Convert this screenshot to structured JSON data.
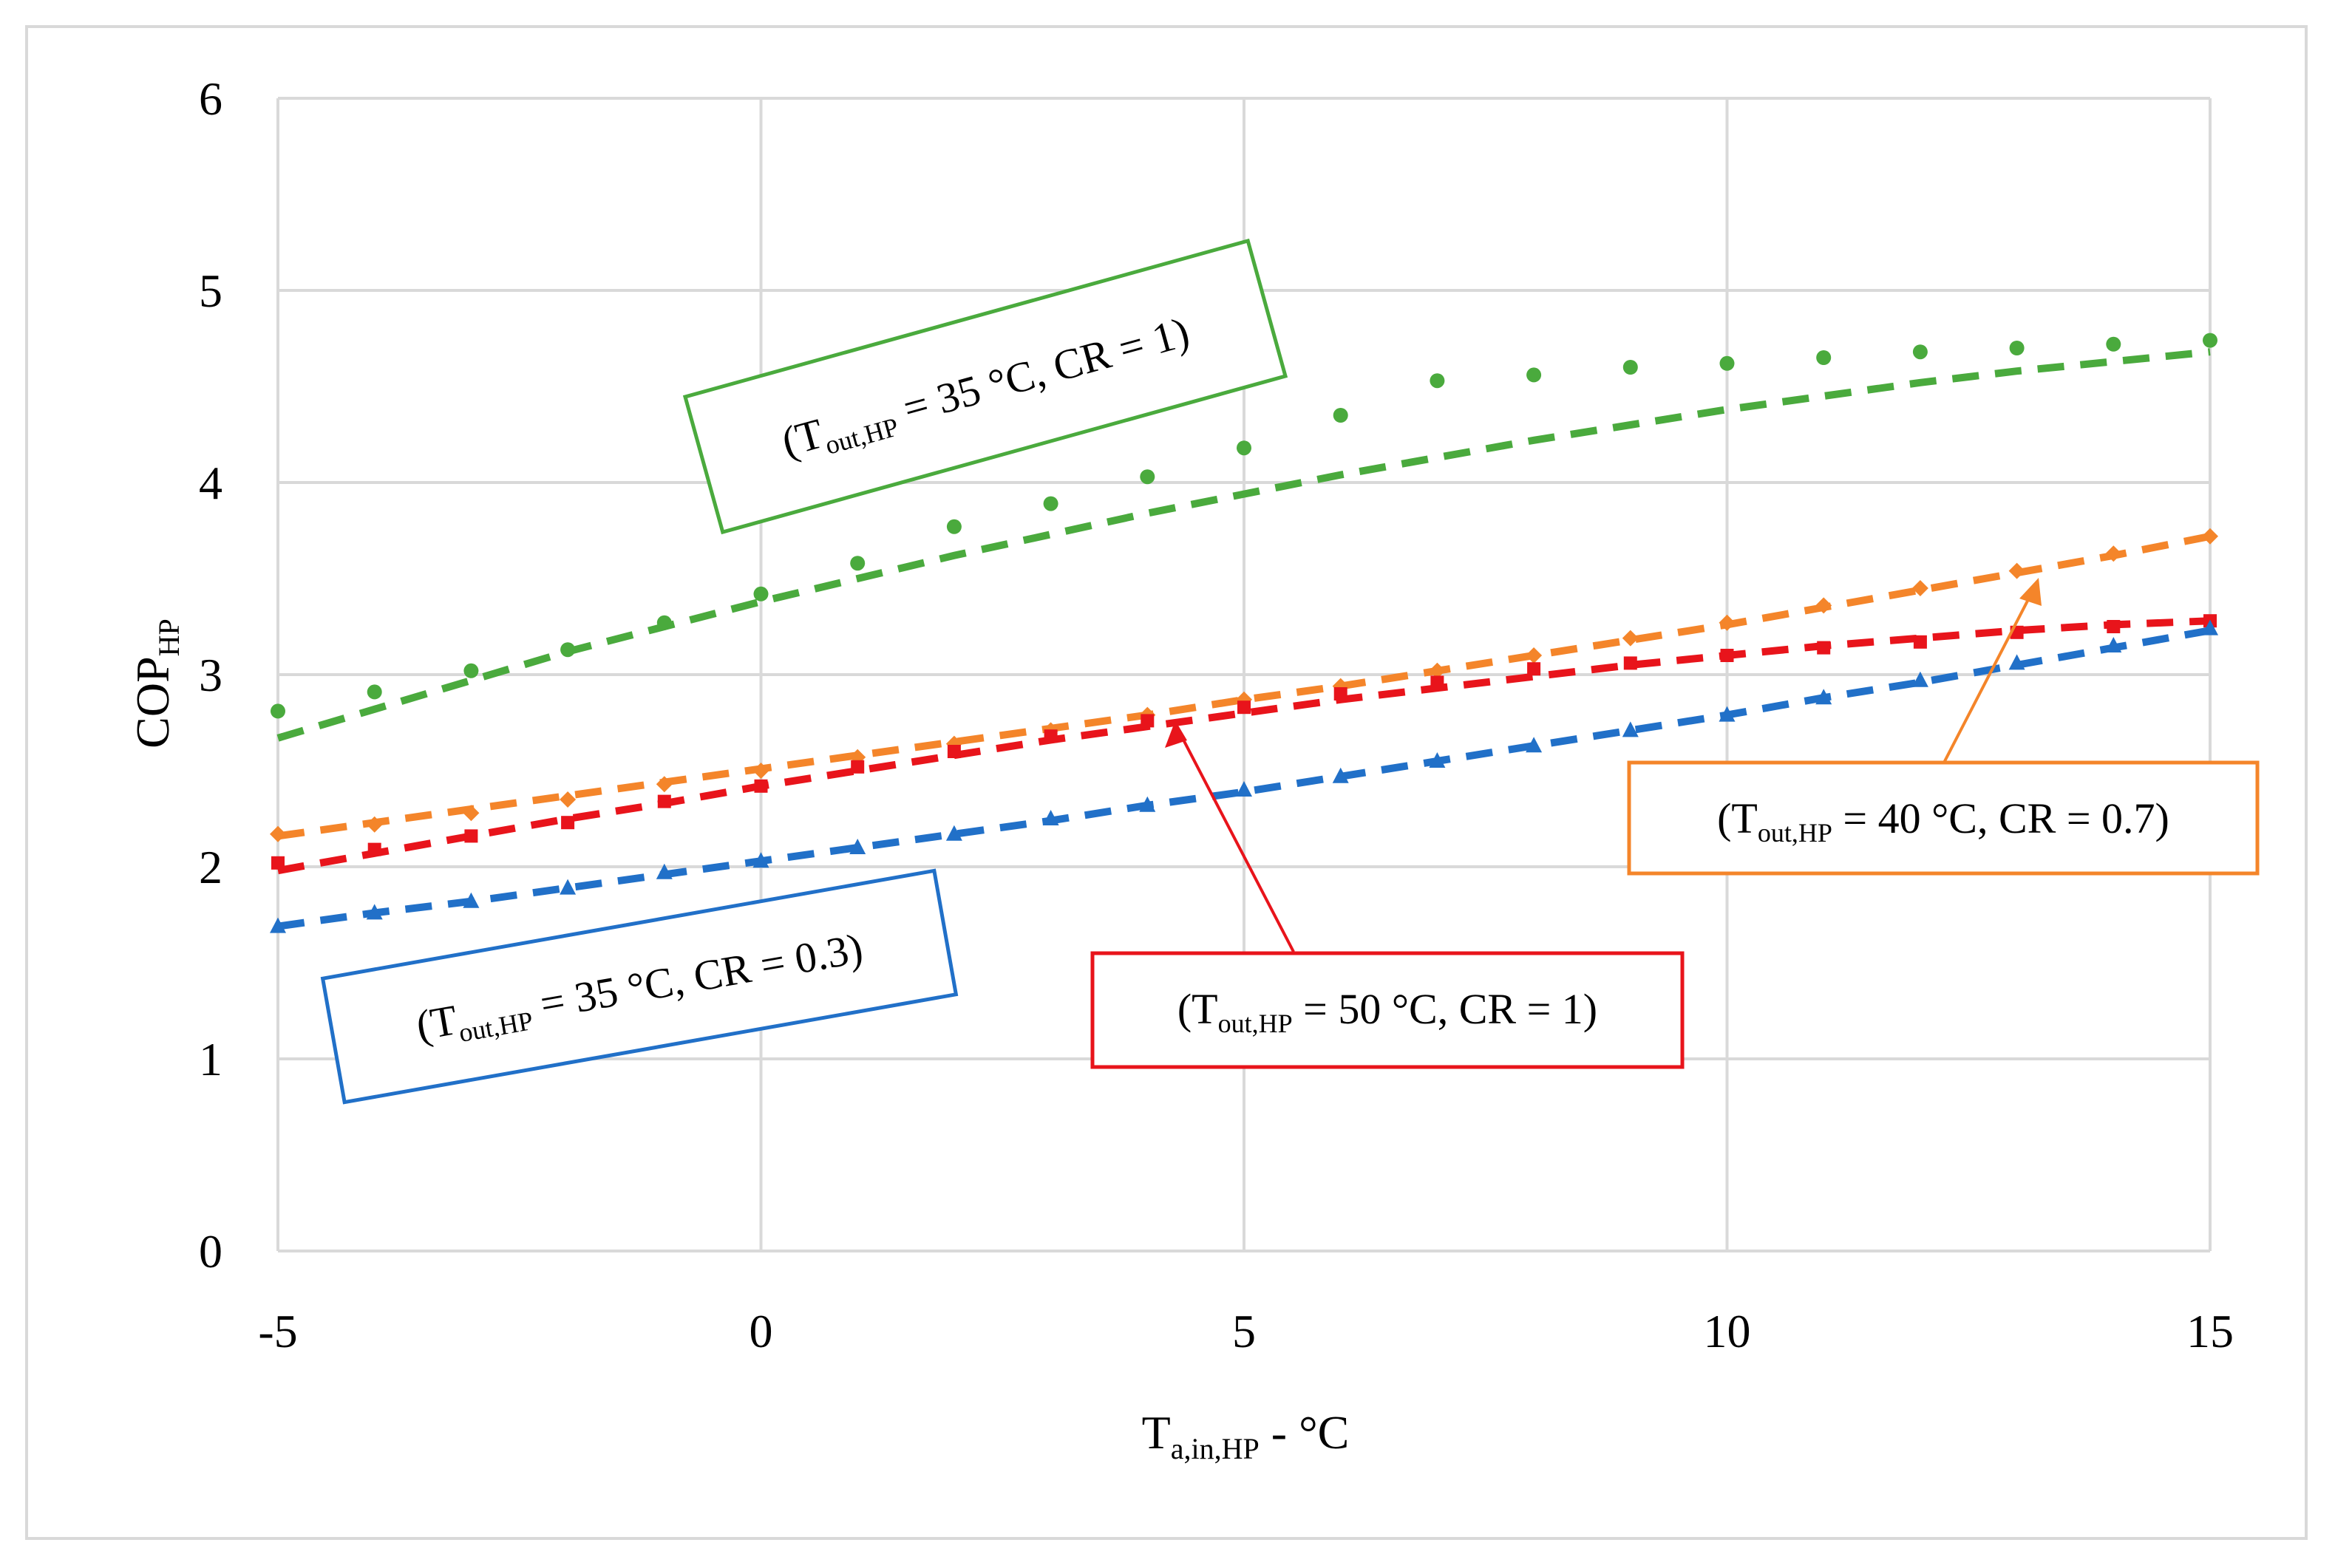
{
  "chart_data": {
    "type": "line",
    "title": "",
    "xlabel": {
      "main": "T",
      "sub": "a,in,HP",
      "suffix": " - °C"
    },
    "ylabel": {
      "main": "COP",
      "sub": "HP"
    },
    "xlim": [
      -5,
      15
    ],
    "ylim": [
      0,
      6
    ],
    "x_ticks": [
      "-5",
      "0",
      "5",
      "10",
      "15"
    ],
    "y_ticks": [
      "0",
      "1",
      "2",
      "3",
      "4",
      "5",
      "6"
    ],
    "grid": true,
    "legend": "none",
    "x": [
      -5,
      -4,
      -3,
      -2,
      -1,
      0,
      1,
      2,
      3,
      4,
      5,
      6,
      7,
      8,
      9,
      10,
      11,
      12,
      13,
      14,
      15
    ],
    "series": [
      {
        "name": "(Tout,HP = 35 °C, CR = 1)",
        "color": "#4aaa3d",
        "marker": "circle",
        "values": [
          2.81,
          2.91,
          3.02,
          3.13,
          3.27,
          3.42,
          3.58,
          3.77,
          3.89,
          4.03,
          4.18,
          4.35,
          4.53,
          4.56,
          4.6,
          4.62,
          4.65,
          4.68,
          4.7,
          4.72,
          4.74
        ],
        "trend": [
          2.67,
          2.82,
          2.97,
          3.12,
          3.25,
          3.38,
          3.5,
          3.62,
          3.73,
          3.84,
          3.94,
          4.04,
          4.13,
          4.22,
          4.3,
          4.38,
          4.45,
          4.52,
          4.58,
          4.63,
          4.68
        ]
      },
      {
        "name": "(Tout,HP = 40 °C, CR = 0.7)",
        "color": "#f4852a",
        "marker": "diamond",
        "values": [
          2.17,
          2.22,
          2.28,
          2.35,
          2.43,
          2.5,
          2.57,
          2.64,
          2.71,
          2.79,
          2.87,
          2.94,
          3.02,
          3.1,
          3.19,
          3.27,
          3.36,
          3.45,
          3.54,
          3.63,
          3.72
        ],
        "trend": [
          2.16,
          2.23,
          2.3,
          2.37,
          2.44,
          2.51,
          2.58,
          2.65,
          2.72,
          2.79,
          2.87,
          2.94,
          3.02,
          3.1,
          3.18,
          3.26,
          3.35,
          3.44,
          3.53,
          3.62,
          3.72
        ]
      },
      {
        "name": "(Tout,HP = 50 °C, CR = 1)",
        "color": "#e8141b",
        "marker": "square",
        "values": [
          2.02,
          2.09,
          2.16,
          2.23,
          2.34,
          2.42,
          2.52,
          2.6,
          2.68,
          2.76,
          2.83,
          2.9,
          2.96,
          3.03,
          3.06,
          3.1,
          3.14,
          3.17,
          3.22,
          3.25,
          3.28
        ],
        "trend": [
          1.98,
          2.07,
          2.16,
          2.25,
          2.33,
          2.42,
          2.5,
          2.58,
          2.66,
          2.73,
          2.8,
          2.87,
          2.93,
          2.99,
          3.05,
          3.1,
          3.15,
          3.19,
          3.23,
          3.26,
          3.28
        ]
      },
      {
        "name": "(Tout,HP = 35 °C, CR = 0.3)",
        "color": "#2170c8",
        "marker": "triangle",
        "values": [
          1.69,
          1.76,
          1.82,
          1.89,
          1.97,
          2.03,
          2.1,
          2.17,
          2.25,
          2.32,
          2.4,
          2.47,
          2.55,
          2.63,
          2.71,
          2.79,
          2.88,
          2.97,
          3.06,
          3.15,
          3.24
        ],
        "trend": [
          1.69,
          1.76,
          1.82,
          1.89,
          1.96,
          2.03,
          2.1,
          2.17,
          2.24,
          2.32,
          2.39,
          2.47,
          2.55,
          2.63,
          2.71,
          2.79,
          2.88,
          2.96,
          3.05,
          3.14,
          3.23
        ]
      }
    ],
    "annotations": [
      {
        "id": "green",
        "main": "(T",
        "sub": "out,HP",
        "rest": " = 35 °C, CR = 1)",
        "color": "#4aaa3d"
      },
      {
        "id": "blue",
        "main": "(T",
        "sub": "out,HP",
        "rest": " = 35 °C, CR = 0.3)",
        "color": "#2170c8"
      },
      {
        "id": "red",
        "main": "(T",
        "sub": "out,HP",
        "rest": " = 50 °C, CR = 1)",
        "color": "#e8141b"
      },
      {
        "id": "orange",
        "main": "(T",
        "sub": "out,HP",
        "rest": " = 40 °C, CR = 0.7)",
        "color": "#f4852a"
      }
    ]
  }
}
